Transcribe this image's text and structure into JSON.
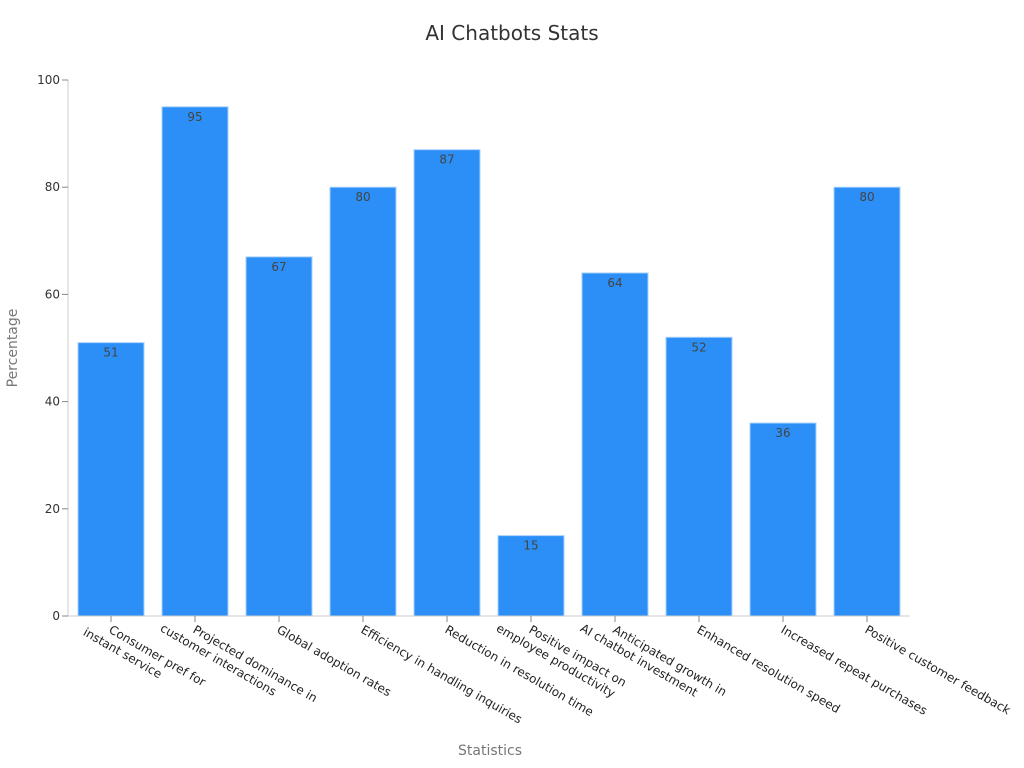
{
  "chart_data": {
    "type": "bar",
    "title": "AI Chatbots Stats",
    "xlabel": "Statistics",
    "ylabel": "Percentage",
    "ylim": [
      0,
      100
    ],
    "yticks": [
      0,
      20,
      40,
      60,
      80,
      100
    ],
    "grid": false,
    "categories": [
      [
        "Consumer pref for",
        "instant service"
      ],
      [
        "Projected dominance in",
        "customer interactions"
      ],
      [
        "Global adoption rates"
      ],
      [
        "Efficiency in handling inquiries"
      ],
      [
        "Reduction in resolution time"
      ],
      [
        "Positive impact on",
        "employee productivity"
      ],
      [
        "Anticipated growth in",
        "AI chatbot investment"
      ],
      [
        "Enhanced resolution speed"
      ],
      [
        "Increased repeat purchases"
      ],
      [
        "Positive customer feedback"
      ]
    ],
    "values": [
      51,
      95,
      67,
      80,
      87,
      15,
      64,
      52,
      36,
      80
    ],
    "bar_color": "#2b8ff7",
    "bar_edge_color": "#a9d1fb"
  }
}
